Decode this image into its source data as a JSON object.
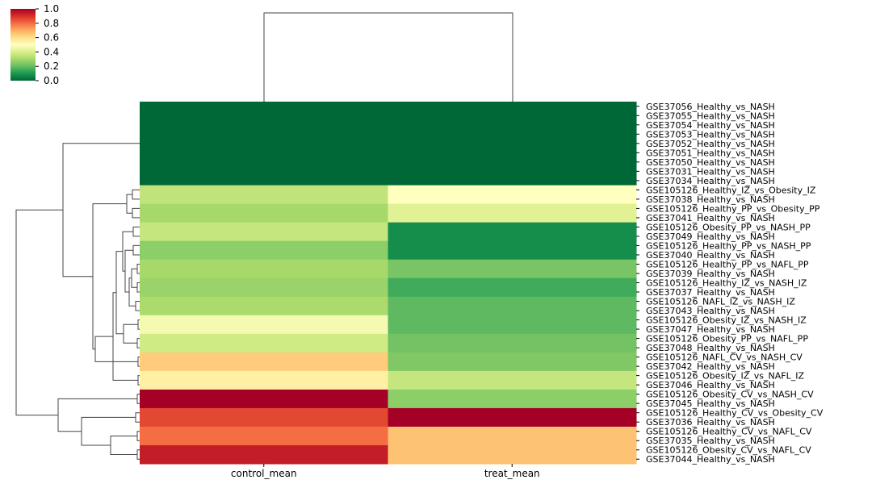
{
  "chart_data": {
    "type": "heatmap",
    "columns": [
      "control_mean",
      "treat_mean"
    ],
    "rows": [
      "GSE37056_Healthy_vs_NASH",
      "GSE37055_Healthy_vs_NASH",
      "GSE37054_Healthy_vs_NASH",
      "GSE37053_Healthy_vs_NASH",
      "GSE37052_Healthy_vs_NASH",
      "GSE37051_Healthy_vs_NASH",
      "GSE37050_Healthy_vs_NASH",
      "GSE37031_Healthy_vs_NASH",
      "GSE37034_Healthy_vs_NASH",
      "GSE105126_Healthy_IZ_vs_Obesity_IZ",
      "GSE37038_Healthy_vs_NASH",
      "GSE105126_Healthy_PP_vs_Obesity_PP",
      "GSE37041_Healthy_vs_NASH",
      "GSE105126_Obesity_PP_vs_NASH_PP",
      "GSE37049_Healthy_vs_NASH",
      "GSE105126_Healthy_PP_vs_NASH_PP",
      "GSE37040_Healthy_vs_NASH",
      "GSE105126_Healthy_PP_vs_NAFL_PP",
      "GSE37039_Healthy_vs_NASH",
      "GSE105126_Healthy_IZ_vs_NASH_IZ",
      "GSE37037_Healthy_vs_NASH",
      "GSE105126_NAFL_IZ_vs_NASH_IZ",
      "GSE37043_Healthy_vs_NASH",
      "GSE105126_Obesity_IZ_vs_NASH_IZ",
      "GSE37047_Healthy_vs_NASH",
      "GSE105126_Obesity_PP_vs_NAFL_PP",
      "GSE37048_Healthy_vs_NASH",
      "GSE105126_NAFL_CV_vs_NASH_CV",
      "GSE37042_Healthy_vs_NASH",
      "GSE105126_Obesity_IZ_vs_NAFL_IZ",
      "GSE37046_Healthy_vs_NASH",
      "GSE105126_Obesity_CV_vs_NASH_CV",
      "GSE37045_Healthy_vs_NASH",
      "GSE105126_Healthy_CV_vs_Obesity_CV",
      "GSE37036_Healthy_vs_NASH",
      "GSE105126_Healthy_CV_vs_NAFL_CV",
      "GSE37035_Healthy_vs_NASH",
      "GSE105126_Obesity_CV_vs_NAFL_CV",
      "GSE37044_Healthy_vs_NASH"
    ],
    "values": [
      [
        0.0,
        0.0
      ],
      [
        0.0,
        0.0
      ],
      [
        0.0,
        0.0
      ],
      [
        0.0,
        0.0
      ],
      [
        0.0,
        0.0
      ],
      [
        0.0,
        0.0
      ],
      [
        0.0,
        0.0
      ],
      [
        0.0,
        0.0
      ],
      [
        0.0,
        0.0
      ],
      [
        0.35,
        0.5
      ],
      [
        0.35,
        0.5
      ],
      [
        0.3,
        0.42
      ],
      [
        0.3,
        0.42
      ],
      [
        0.36,
        0.08
      ],
      [
        0.36,
        0.08
      ],
      [
        0.26,
        0.08
      ],
      [
        0.26,
        0.08
      ],
      [
        0.3,
        0.23
      ],
      [
        0.3,
        0.23
      ],
      [
        0.28,
        0.15
      ],
      [
        0.28,
        0.15
      ],
      [
        0.31,
        0.19
      ],
      [
        0.31,
        0.19
      ],
      [
        0.47,
        0.19
      ],
      [
        0.47,
        0.19
      ],
      [
        0.38,
        0.22
      ],
      [
        0.38,
        0.22
      ],
      [
        0.64,
        0.24
      ],
      [
        0.64,
        0.24
      ],
      [
        0.55,
        0.36
      ],
      [
        0.55,
        0.36
      ],
      [
        1.0,
        0.26
      ],
      [
        1.0,
        0.26
      ],
      [
        0.86,
        1.0
      ],
      [
        0.86,
        1.0
      ],
      [
        0.8,
        0.66
      ],
      [
        0.8,
        0.66
      ],
      [
        0.94,
        0.66
      ],
      [
        0.94,
        0.66
      ]
    ],
    "colorbar": {
      "min": 0.0,
      "max": 1.0,
      "ticks": [
        "0.0",
        "0.2",
        "0.4",
        "0.6",
        "0.8",
        "1.0"
      ]
    },
    "colormap": "RdYlGn_r",
    "row_dendrogram": true,
    "col_dendrogram": true
  }
}
